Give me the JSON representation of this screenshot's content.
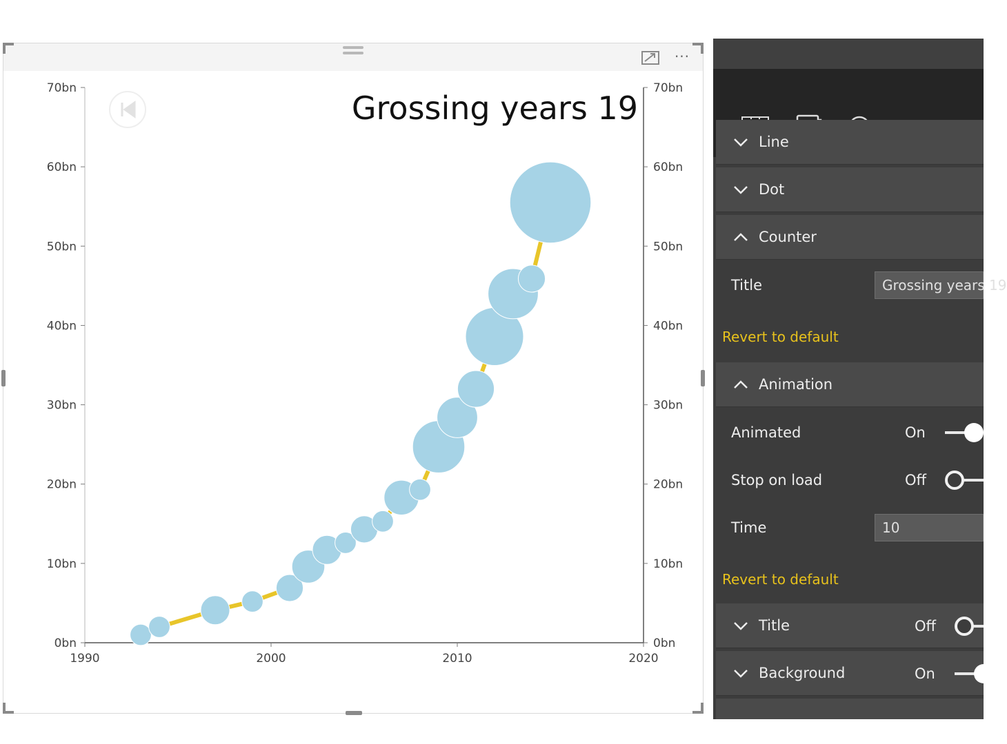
{
  "chart_data": {
    "type": "line",
    "title": "Grossing years 19",
    "x_ticks": [
      "1990",
      "2000",
      "2010",
      "2020"
    ],
    "y_ticks": [
      "0bn",
      "10bn",
      "20bn",
      "30bn",
      "40bn",
      "50bn",
      "60bn",
      "70bn"
    ],
    "y2_ticks": [
      "0bn",
      "10bn",
      "20bn",
      "30bn",
      "40bn",
      "50bn",
      "60bn",
      "70bn"
    ],
    "xlim": [
      1990,
      2020
    ],
    "ylim": [
      0,
      70
    ],
    "line_color": "#e8c52a",
    "bubble_color": "#a6d3e6",
    "series": [
      {
        "points": [
          {
            "x": 1993,
            "y": 1.0,
            "size": 1.1
          },
          {
            "x": 1994,
            "y": 2.0,
            "size": 1.1
          },
          {
            "x": 1997,
            "y": 4.1,
            "size": 1.5
          },
          {
            "x": 1999,
            "y": 5.2,
            "size": 1.1
          },
          {
            "x": 2001,
            "y": 6.9,
            "size": 1.4
          },
          {
            "x": 2002,
            "y": 9.6,
            "size": 1.7
          },
          {
            "x": 2003,
            "y": 11.7,
            "size": 1.5
          },
          {
            "x": 2004,
            "y": 12.6,
            "size": 1.1
          },
          {
            "x": 2005,
            "y": 14.3,
            "size": 1.4
          },
          {
            "x": 2006,
            "y": 15.3,
            "size": 1.1
          },
          {
            "x": 2007,
            "y": 18.3,
            "size": 1.8
          },
          {
            "x": 2008,
            "y": 19.3,
            "size": 1.1
          },
          {
            "x": 2009,
            "y": 24.7,
            "size": 2.7
          },
          {
            "x": 2010,
            "y": 28.4,
            "size": 2.1
          },
          {
            "x": 2011,
            "y": 32.0,
            "size": 1.9
          },
          {
            "x": 2012,
            "y": 38.6,
            "size": 3.0
          },
          {
            "x": 2013,
            "y": 44.0,
            "size": 2.6
          },
          {
            "x": 2014,
            "y": 45.9,
            "size": 1.4
          },
          {
            "x": 2015,
            "y": 55.5,
            "size": 4.2
          }
        ]
      }
    ]
  },
  "visual_header": {
    "focus_icon": "focus-mode-icon",
    "more_label": "···"
  },
  "format_pane": {
    "tabs": [
      {
        "icon": "fields-icon"
      },
      {
        "icon": "format-paint-roller-icon",
        "active": true
      },
      {
        "icon": "analytics-icon"
      }
    ],
    "accent_color": "#e8c21c",
    "sections": {
      "line": {
        "label": "Line"
      },
      "dot": {
        "label": "Dot"
      },
      "counter": {
        "label": "Counter",
        "title_label": "Title",
        "title_value": "Grossing years 19",
        "revert": "Revert to default"
      },
      "animation": {
        "label": "Animation",
        "animated_label": "Animated",
        "animated_state": "On",
        "stop_label": "Stop on load",
        "stop_state": "Off",
        "time_label": "Time",
        "time_value": "10",
        "revert": "Revert to default"
      },
      "title": {
        "label": "Title",
        "state": "Off"
      },
      "background": {
        "label": "Background",
        "state": "On"
      }
    }
  }
}
